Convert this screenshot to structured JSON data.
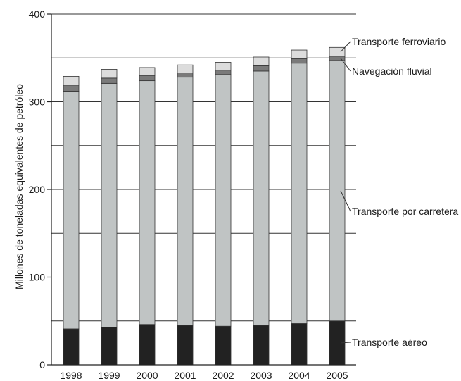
{
  "chart_data": {
    "type": "bar",
    "stacked": true,
    "categories": [
      "1998",
      "1999",
      "2000",
      "2001",
      "2002",
      "2003",
      "2004",
      "2005"
    ],
    "series": [
      {
        "name": "Transporte aéreo",
        "color": "#222222",
        "values": [
          41,
          43,
          46,
          45,
          44,
          45,
          47,
          50
        ]
      },
      {
        "name": "Transporte por carretera",
        "color": "#c0c4c4",
        "values": [
          271,
          278,
          278,
          283,
          287,
          290,
          297,
          297
        ]
      },
      {
        "name": "Navegación fluvial",
        "color": "#7a7a7a",
        "values": [
          7,
          6,
          6,
          5,
          5,
          6,
          5,
          5
        ]
      },
      {
        "name": "Transporte ferroviario",
        "color": "#dcdcdc",
        "values": [
          10,
          10,
          9,
          9,
          9,
          10,
          10,
          10
        ]
      }
    ],
    "ylabel": "Millones de toneladas equivalentes de petróleo",
    "xlabel": "",
    "ylim": [
      0,
      400
    ],
    "yticks": [
      0,
      100,
      200,
      300,
      400
    ],
    "grid": true,
    "legend": "right, inline labels with leader lines"
  }
}
